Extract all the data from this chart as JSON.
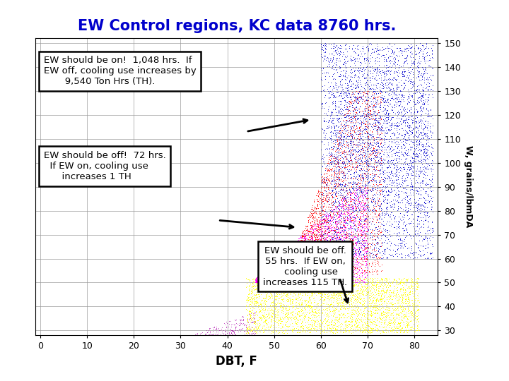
{
  "title": "EW Control regions, KC data 8760 hrs.",
  "title_color": "#0000CC",
  "title_fontsize": 15,
  "xlabel": "DBT, F",
  "ylabel": "W, grains/lbmDA",
  "xlim": [
    -1,
    85
  ],
  "ylim": [
    28,
    152
  ],
  "xticks": [
    0,
    10,
    20,
    30,
    40,
    50,
    60,
    70,
    80
  ],
  "yticks": [
    30,
    40,
    50,
    60,
    70,
    80,
    90,
    100,
    110,
    120,
    130,
    140,
    150
  ],
  "background_color": "#ffffff",
  "ann1_text": "EW should be on!  1,048 hrs.  If\nEW off, cooling use increases by\n       9,540 Ton Hrs (TH).",
  "ann2_text": "EW should be off!  72 hrs.\n  If EW on, cooling use\n      increases 1 TH",
  "ann3_text": "EW should be off.\n55 hrs.  If EW on,\n    cooling use\nincreases 115 TH.",
  "seed": 42
}
